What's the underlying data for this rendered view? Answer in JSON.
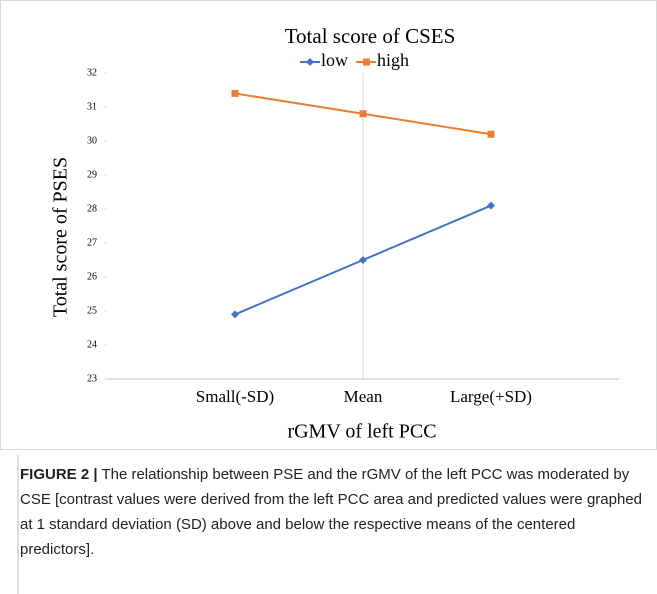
{
  "chart_data": {
    "type": "line",
    "title": "Total score of CSES",
    "y_label": "Total score of PSES",
    "x_label": "rGMV of left PCC",
    "categories": [
      "Small(-SD)",
      "Mean",
      "Large(+SD)"
    ],
    "series": [
      {
        "name": "low",
        "color": "#4472c4",
        "values": [
          24.9,
          26.5,
          28.1
        ]
      },
      {
        "name": "high",
        "color": "#ed7d31",
        "values": [
          31.4,
          30.8,
          30.2
        ]
      }
    ],
    "ylim": [
      23,
      32
    ],
    "yticks": [
      23,
      24,
      25,
      26,
      27,
      28,
      29,
      30,
      31,
      32
    ],
    "legend": "top"
  },
  "caption": {
    "label": "FIGURE 2 |",
    "text": "The relationship between PSE and the rGMV of the left PCC was moderated by CSE [contrast values were derived from the left PCC area and predicted values were graphed at 1 standard deviation (SD) above and below the respective means of the centered predictors]."
  }
}
